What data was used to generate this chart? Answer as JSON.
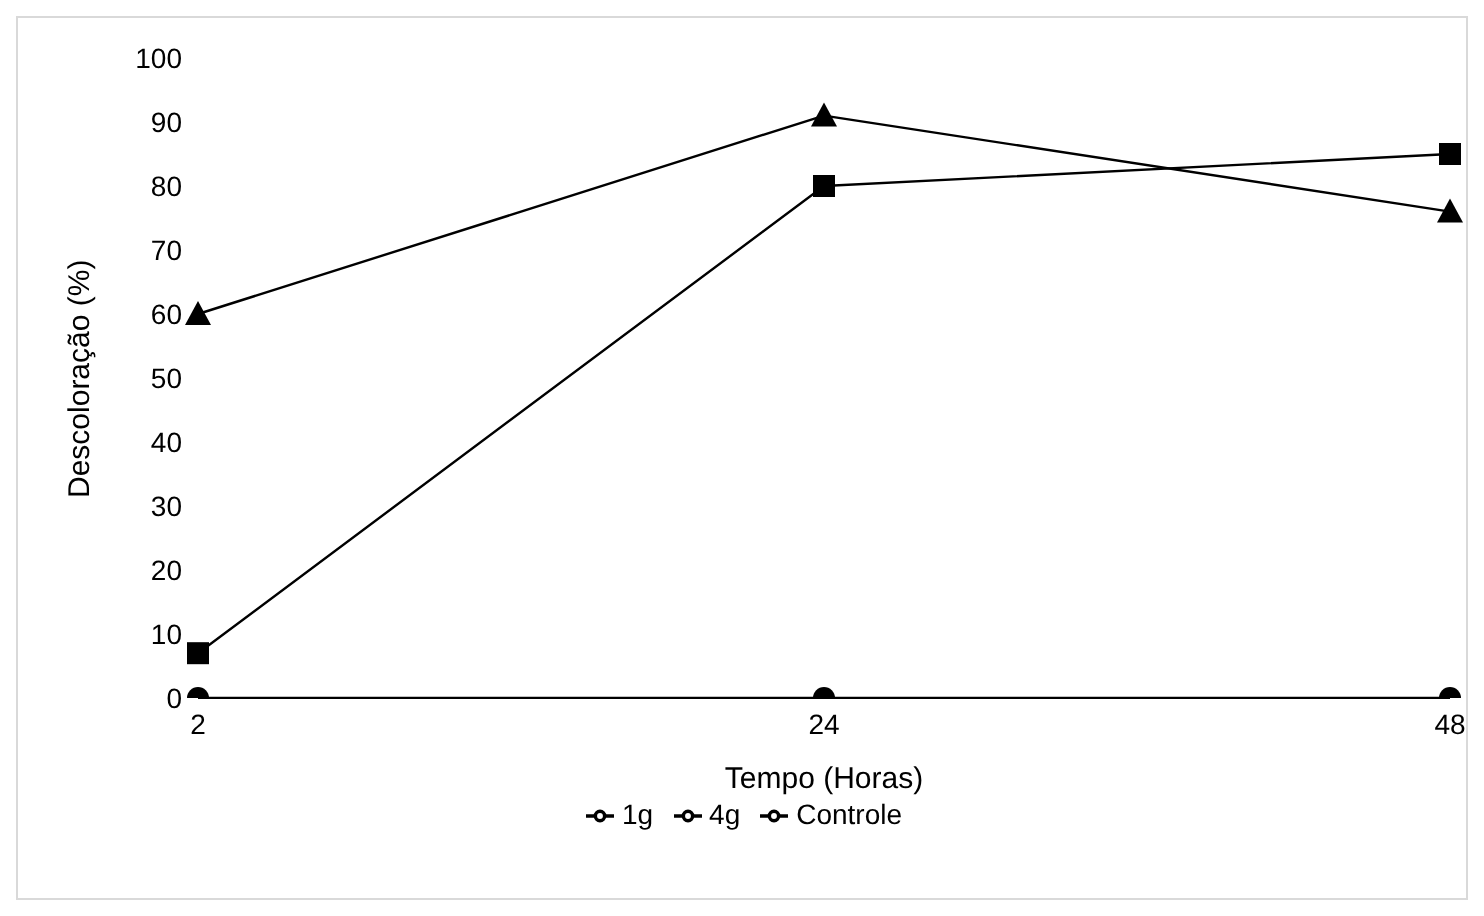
{
  "chart_data": {
    "type": "line",
    "xlabel": "Tempo (Horas)",
    "ylabel": "Descoloração (%)",
    "categories": [
      "2",
      "24",
      "48"
    ],
    "series": [
      {
        "name": "1g",
        "color": "#000000",
        "marker": "square",
        "values": [
          7,
          80,
          85
        ]
      },
      {
        "name": "4g",
        "color": "#000000",
        "marker": "triangle",
        "values": [
          60,
          91,
          76
        ]
      },
      {
        "name": "Controle",
        "color": "#000000",
        "marker": "circle",
        "values": [
          0,
          0,
          0
        ]
      }
    ],
    "ylim": [
      0,
      100
    ],
    "yticks": [
      0,
      10,
      20,
      30,
      40,
      50,
      60,
      70,
      80,
      90,
      100
    ],
    "grid": false,
    "legend": "bottom"
  }
}
